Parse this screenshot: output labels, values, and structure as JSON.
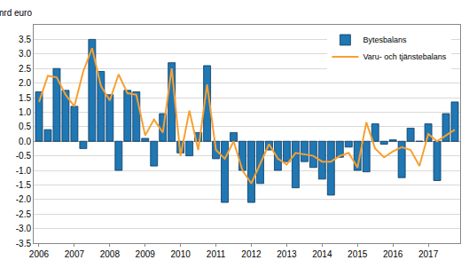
{
  "chart_data": {
    "type": "bar",
    "ylabel": "mrd euro",
    "categories": [
      "2006",
      null,
      null,
      null,
      "2007",
      null,
      null,
      null,
      "2008",
      null,
      null,
      null,
      "2009",
      null,
      null,
      null,
      "2010",
      null,
      null,
      null,
      "2011",
      null,
      null,
      null,
      "2012",
      null,
      null,
      null,
      "2013",
      null,
      null,
      null,
      "2014",
      null,
      null,
      null,
      "2015",
      null,
      null,
      null,
      "2016",
      null,
      null,
      null,
      "2017",
      null,
      null,
      null
    ],
    "series": [
      {
        "name": "Bytesbalans",
        "type": "bar",
        "color": "#1f77b4",
        "values": [
          1.7,
          0.4,
          2.5,
          1.75,
          1.2,
          -0.25,
          3.5,
          2.4,
          1.6,
          -1.0,
          1.75,
          1.7,
          0.1,
          -0.85,
          0.95,
          2.7,
          -0.4,
          -0.5,
          0.3,
          2.6,
          -0.6,
          -2.1,
          0.3,
          -1.0,
          -2.1,
          -1.45,
          -0.3,
          -1.0,
          -0.7,
          -1.6,
          -0.7,
          -0.9,
          -1.3,
          -1.85,
          -0.55,
          -0.2,
          -1.0,
          -1.05,
          0.6,
          -0.1,
          0.05,
          -1.25,
          0.45,
          0.0,
          0.6,
          -1.35,
          0.95,
          1.35
        ]
      },
      {
        "name": "Varu- och tjänstebalans",
        "type": "line",
        "color": "#f7a030",
        "values": [
          1.35,
          2.25,
          2.2,
          1.6,
          1.2,
          2.4,
          3.2,
          1.9,
          1.4,
          2.3,
          1.65,
          1.6,
          0.2,
          0.75,
          0.3,
          2.5,
          -0.5,
          1.05,
          -0.3,
          1.95,
          -0.3,
          -0.6,
          0.0,
          -1.0,
          -1.45,
          -0.8,
          -0.1,
          -0.6,
          -0.8,
          -0.4,
          -0.45,
          -0.5,
          -0.7,
          -0.7,
          -0.5,
          -0.4,
          -0.9,
          0.65,
          -0.25,
          -0.55,
          -0.35,
          -0.2,
          -0.3,
          -0.85,
          0.25,
          0.0,
          0.2,
          0.4
        ]
      }
    ],
    "ylim": [
      -3.5,
      4.0
    ],
    "yticks": [
      -3.5,
      {
        "value": -3.0,
        "label": "-3.0"
      },
      -2.5,
      {
        "value": -2.0,
        "label": "-2.0"
      },
      -1.5,
      {
        "value": -1.0,
        "label": "-1.0"
      },
      -0.5,
      {
        "value": 0.0,
        "label": "0.0"
      },
      0.5,
      {
        "value": 1.0,
        "label": "1.0"
      },
      1.5,
      {
        "value": 2.0,
        "label": "2.0"
      },
      2.5,
      {
        "value": 3.0,
        "label": "3.0"
      },
      3.5
    ],
    "grid": true,
    "legend": "top-right"
  }
}
